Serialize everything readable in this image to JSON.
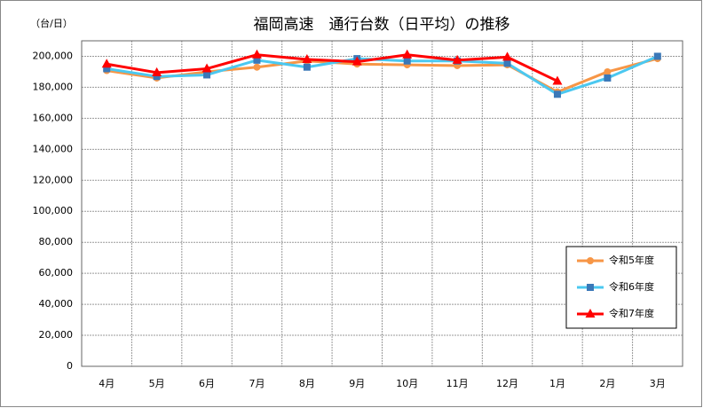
{
  "chart_data": {
    "type": "line",
    "title": "福岡高速　通行台数（日平均）の推移",
    "y_unit": "（台/日）",
    "categories": [
      "4月",
      "5月",
      "6月",
      "7月",
      "8月",
      "9月",
      "10月",
      "11月",
      "12月",
      "1月",
      "2月",
      "3月"
    ],
    "series": [
      {
        "name": "令和5年度",
        "color": "#f79646",
        "marker": "circle",
        "values": [
          190800,
          186000,
          190000,
          193000,
          197000,
          195000,
          194500,
          194000,
          194500,
          177000,
          190000,
          198500
        ]
      },
      {
        "name": "令和6年度",
        "color": "#4bc8f0",
        "marker": "square",
        "values": [
          192000,
          187000,
          188000,
          197500,
          193000,
          198500,
          197000,
          197000,
          195500,
          175500,
          186000,
          200000
        ]
      },
      {
        "name": "令和7年度",
        "color": "#ff0000",
        "marker": "triangle",
        "values": [
          195000,
          189500,
          192000,
          201000,
          198000,
          196500,
          201000,
          197500,
          199500,
          184000,
          null,
          null
        ]
      }
    ],
    "ylim": [
      0,
      210000
    ],
    "yticks": [
      0,
      {
        "value": 20000,
        "label": "20,000"
      },
      {
        "value": 40000,
        "label": "40,000"
      },
      {
        "value": 60000,
        "label": "60,000"
      },
      {
        "value": 80000,
        "label": "80,000"
      },
      {
        "value": 100000,
        "label": "100,000"
      },
      {
        "value": 120000,
        "label": "120,000"
      },
      {
        "value": 140000,
        "label": "140,000"
      },
      {
        "value": 160000,
        "label": "160,000"
      },
      {
        "value": 180000,
        "label": "180,000"
      },
      {
        "value": 200000,
        "label": "200,000"
      }
    ],
    "grid": true,
    "legend": "lower right"
  }
}
